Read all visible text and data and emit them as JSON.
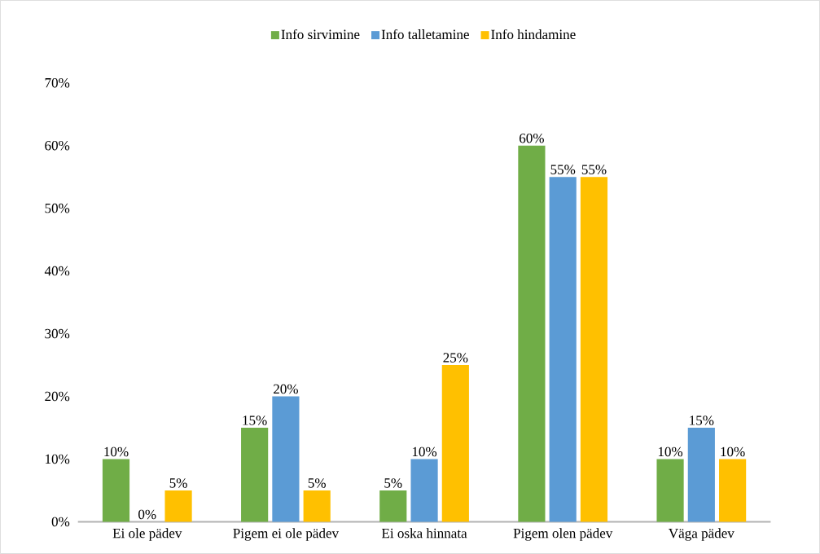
{
  "chart_data": {
    "type": "bar",
    "categories": [
      "Ei ole pädev",
      "Pigem ei ole pädev",
      "Ei oska hinnata",
      "Pigem olen pädev",
      "Väga pädev"
    ],
    "series": [
      {
        "name": "Info sirvimine",
        "color": "#70ad47",
        "values": [
          10,
          15,
          5,
          60,
          10
        ],
        "value_labels": [
          "10%",
          "15%",
          "5%",
          "60%",
          "10%"
        ]
      },
      {
        "name": "Info talletamine",
        "color": "#5b9bd5",
        "values": [
          0,
          20,
          10,
          55,
          15
        ],
        "value_labels": [
          "0%",
          "20%",
          "10%",
          "55%",
          "15%"
        ]
      },
      {
        "name": "Info hindamine",
        "color": "#ffc000",
        "values": [
          5,
          5,
          25,
          55,
          10
        ],
        "value_labels": [
          "5%",
          "5%",
          "25%",
          "55%",
          "10%"
        ]
      }
    ],
    "ylim": [
      0,
      70
    ],
    "yticks": [
      {
        "value": 0,
        "label": "0%"
      },
      {
        "value": 10,
        "label": "10%"
      },
      {
        "value": 20,
        "label": "20%"
      },
      {
        "value": 30,
        "label": "30%"
      },
      {
        "value": 40,
        "label": "40%"
      },
      {
        "value": 50,
        "label": "50%"
      },
      {
        "value": 60,
        "label": "60%"
      },
      {
        "value": 70,
        "label": "70%"
      }
    ],
    "legend": "top"
  }
}
